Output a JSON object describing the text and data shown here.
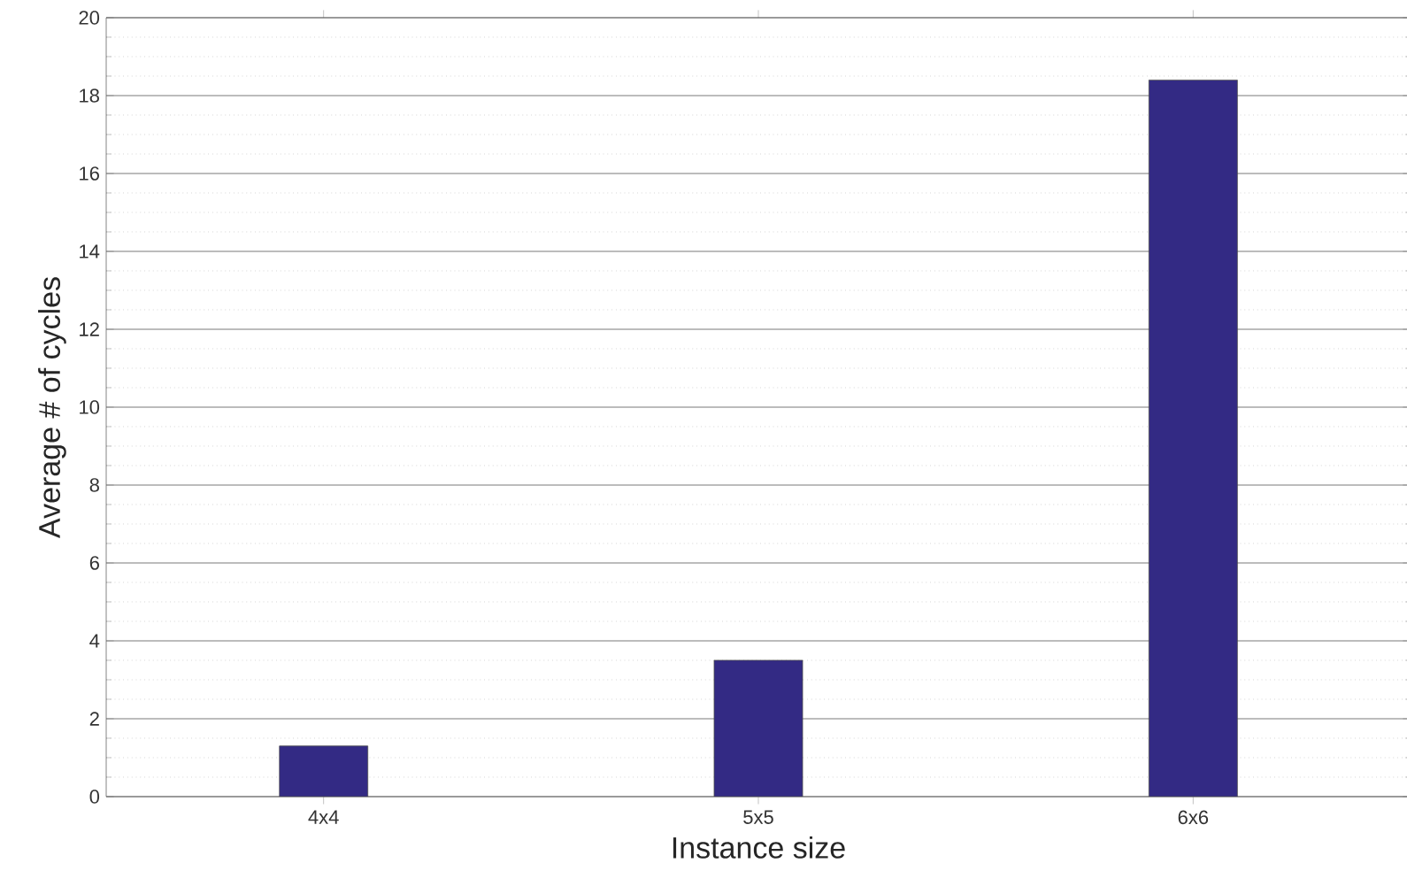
{
  "chart_data": {
    "type": "bar",
    "xlabel": "Instance size",
    "ylabel": "Average # of cycles",
    "categories": [
      "4x4",
      "5x5",
      "6x6"
    ],
    "values": [
      1.3,
      3.5,
      18.4
    ],
    "color": "#332a84",
    "ylim": [
      0,
      20
    ],
    "yticks": [
      0,
      2,
      4,
      6,
      8,
      10,
      12,
      14,
      16,
      18,
      20
    ],
    "grid": "y"
  }
}
